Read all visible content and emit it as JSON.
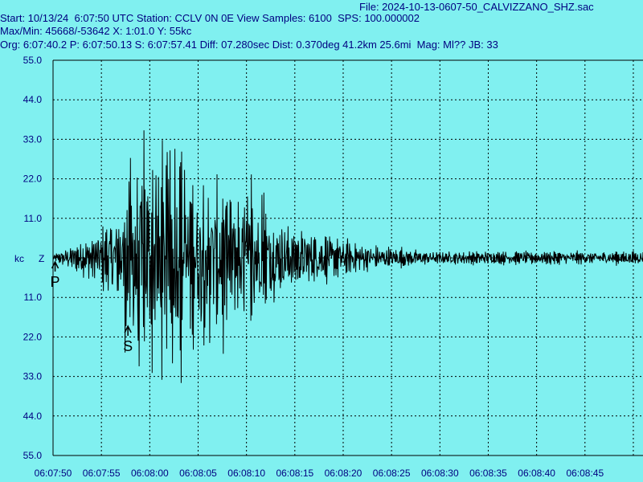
{
  "header": {
    "file_line": "File: 2024-10-13-0607-50_CALVIZZANO_SHZ.sac",
    "start_line": "Start: 10/13/24  6:07:50 UTC Station: CCLV 0N 0E View Samples: 6100  SPS: 100.000002",
    "maxmin_line": "Max/Min: 45668/-53642 X: 1:01.0 Y: 55kc",
    "org_line": "Org: 6:07:40.2 P: 6:07:50.13 S: 6:07:57.41 Diff: 07.280sec Dist: 0.370deg 41.2km 25.6mi  Mag: Ml?? JB: 33"
  },
  "colors": {
    "background": "#80f0f0",
    "grid": "#000000",
    "trace": "#000000",
    "text": "#000080"
  },
  "chart_data": {
    "type": "line",
    "ylabel": "kc",
    "channel_label": "Z",
    "ylim": [
      -55,
      55
    ],
    "yticks": [
      "55.0",
      "44.0",
      "33.0",
      "22.0",
      "11.0",
      "",
      "11.0",
      "22.0",
      "33.0",
      "44.0",
      "55.0"
    ],
    "xlim_seconds_from_start": [
      0,
      61
    ],
    "xticks": [
      "06:07:50",
      "06:07:55",
      "06:08:00",
      "06:08:05",
      "06:08:10",
      "06:08:15",
      "06:08:20",
      "06:08:25",
      "06:08:30",
      "06:08:35",
      "06:08:40",
      "06:08:45"
    ],
    "phase_picks": [
      {
        "label": "P",
        "time_s": 0.13
      },
      {
        "label": "S",
        "time_s": 7.41
      }
    ],
    "max": 45668,
    "min": -53642
  }
}
